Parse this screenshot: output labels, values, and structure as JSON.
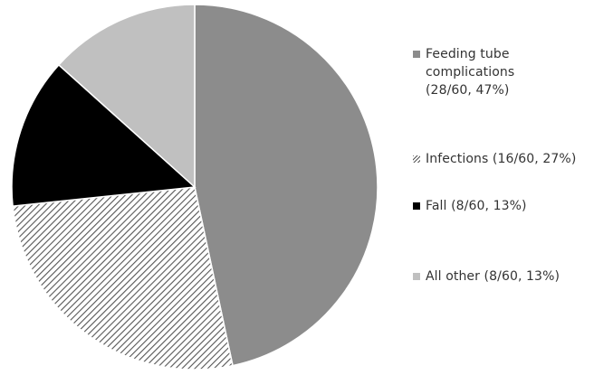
{
  "chart_data": {
    "type": "pie",
    "title": "",
    "slices": [
      {
        "label": "Feeding tube complications",
        "count": 28,
        "total": 60,
        "percent": 47,
        "legend_text": "Feeding tube\ncomplications\n(28/60, 47%)",
        "color": "#8c8c8c",
        "pattern": "solid"
      },
      {
        "label": "Infections",
        "count": 16,
        "total": 60,
        "percent": 27,
        "legend_text": "Infections (16/60, 27%)",
        "color": "#555555",
        "pattern": "diagonal-hatch"
      },
      {
        "label": "Fall",
        "count": 8,
        "total": 60,
        "percent": 13,
        "legend_text": "Fall (8/60, 13%)",
        "color": "#000000",
        "pattern": "solid"
      },
      {
        "label": "All other",
        "count": 8,
        "total": 60,
        "percent": 13,
        "legend_text": "All other (8/60, 13%)",
        "color": "#c0c0c0",
        "pattern": "solid"
      }
    ],
    "legend_position": "right"
  }
}
